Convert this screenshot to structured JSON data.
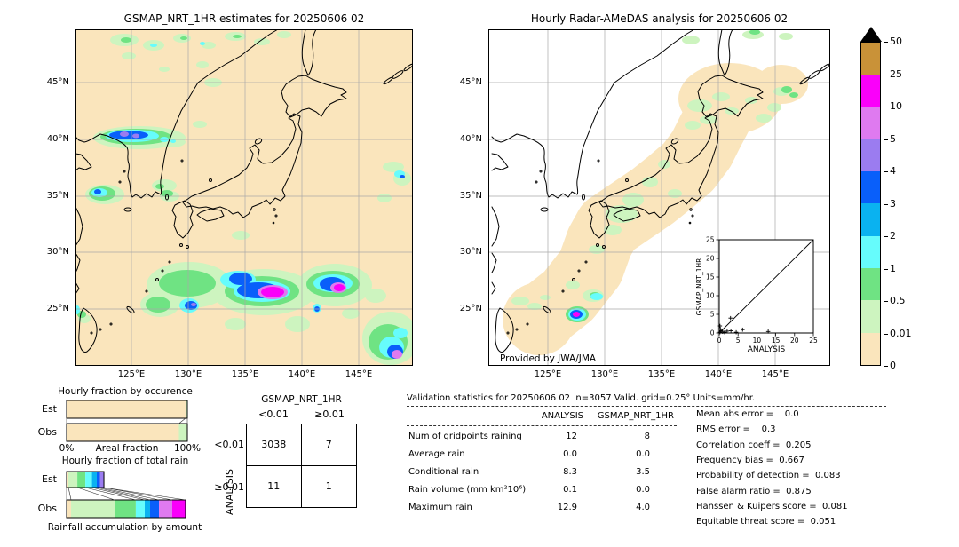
{
  "left_map": {
    "title": "GSMAP_NRT_1HR estimates for 20250606 02",
    "x_ticks": [
      "125°E",
      "130°E",
      "135°E",
      "140°E",
      "145°E"
    ],
    "y_ticks": [
      "45°N",
      "40°N",
      "35°N",
      "30°N",
      "25°N"
    ]
  },
  "right_map": {
    "title": "Hourly Radar-AMeDAS analysis for 20250606 02",
    "x_ticks": [
      "125°E",
      "130°E",
      "135°E",
      "140°E",
      "145°E"
    ],
    "y_ticks": [
      "45°N",
      "40°N",
      "35°N",
      "30°N",
      "25°N"
    ],
    "credit": "Provided by JWA/JMA",
    "inset": {
      "xlabel": "ANALYSIS",
      "ylabel": "GSMAP_NRT_1HR",
      "tick_labels": [
        "0",
        "5",
        "10",
        "15",
        "20",
        "25"
      ],
      "points": [
        [
          0.2,
          0.2
        ],
        [
          0.5,
          0.6
        ],
        [
          0.9,
          0.3
        ],
        [
          0.3,
          1.1
        ],
        [
          0.2,
          1.9
        ],
        [
          1.4,
          0.2
        ],
        [
          2.1,
          0.5
        ],
        [
          3.1,
          0.6
        ],
        [
          3.0,
          4.0
        ],
        [
          4.5,
          0.2
        ],
        [
          6.2,
          0.9
        ],
        [
          13.0,
          0.4
        ]
      ]
    }
  },
  "colorbar": {
    "labels": [
      "50",
      "25",
      "10",
      "5",
      "4",
      "3",
      "2",
      "1",
      "0.5",
      "0.01",
      "0"
    ],
    "colors": [
      "#c99238",
      "#fa00fa",
      "#df7af0",
      "#9b7cf0",
      "#095ffa",
      "#0ab2f0",
      "#66fcfc",
      "#6fe383",
      "#cdf4bf",
      "#fae5bc"
    ],
    "overflow_color": "#000000",
    "units": "mm/hr"
  },
  "occurrence_chart": {
    "title": "Hourly fraction by occurence",
    "row_labels": [
      "Est",
      "Obs"
    ],
    "xlabel": "Areal fraction",
    "x_min_label": "0%",
    "x_max_label": "100%",
    "est_segments": [
      {
        "color": "#fae5bc",
        "frac": 0.985
      },
      {
        "color": "#cdf4bf",
        "frac": 0.015
      }
    ],
    "obs_segments": [
      {
        "color": "#fae5bc",
        "frac": 0.93
      },
      {
        "color": "#cdf4bf",
        "frac": 0.07
      }
    ]
  },
  "totalrain_chart": {
    "title": "Hourly fraction of total rain",
    "row_labels": [
      "Est",
      "Obs"
    ],
    "caption": "Rainfall accumulation by amount",
    "est_segments": [
      {
        "color": "#fae5bc",
        "frac": 0.015
      },
      {
        "color": "#cdf4bf",
        "frac": 0.074
      },
      {
        "color": "#6fe383",
        "frac": 0.066
      },
      {
        "color": "#66fcfc",
        "frac": 0.055
      },
      {
        "color": "#0ab2f0",
        "frac": 0.04
      },
      {
        "color": "#095ffa",
        "frac": 0.026
      },
      {
        "color": "#9b7cf0",
        "frac": 0.033
      }
    ],
    "obs_segments": [
      {
        "color": "#fae5bc",
        "frac": 0.037
      },
      {
        "color": "#cdf4bf",
        "frac": 0.36
      },
      {
        "color": "#6fe383",
        "frac": 0.176
      },
      {
        "color": "#66fcfc",
        "frac": 0.074
      },
      {
        "color": "#0ab2f0",
        "frac": 0.044
      },
      {
        "color": "#095ffa",
        "frac": 0.074
      },
      {
        "color": "#df7af0",
        "frac": 0.11
      },
      {
        "color": "#fa00fa",
        "frac": 0.11
      }
    ]
  },
  "contingency": {
    "col_title": "GSMAP_NRT_1HR",
    "row_title": "ANALYSIS",
    "col_labels": [
      "<0.01",
      "≥0.01"
    ],
    "row_labels": [
      "<0.01",
      "≥0.01"
    ],
    "values": [
      [
        "3038",
        "7"
      ],
      [
        "11",
        "1"
      ]
    ]
  },
  "stats": {
    "title": "Validation statistics for 20250606 02  n=3057 Valid. grid=0.25° Units=mm/hr.",
    "columns": [
      "ANALYSIS",
      "GSMAP_NRT_1HR"
    ],
    "rows": [
      {
        "label": "Num of gridpoints raining",
        "analysis": "12",
        "gsmap": "8"
      },
      {
        "label": "Average rain",
        "analysis": "0.0",
        "gsmap": "0.0"
      },
      {
        "label": "Conditional rain",
        "analysis": "8.3",
        "gsmap": "3.5"
      },
      {
        "label": "Rain volume (mm km²10⁶)",
        "analysis": "0.1",
        "gsmap": "0.0"
      },
      {
        "label": "Maximum rain",
        "analysis": "12.9",
        "gsmap": "4.0"
      }
    ],
    "scores": [
      {
        "label": "Mean abs error",
        "value": "   0.0"
      },
      {
        "label": "RMS error",
        "value": "   0.3"
      },
      {
        "label": "Correlation coeff",
        "value": " 0.205"
      },
      {
        "label": "Frequency bias",
        "value": " 0.667"
      },
      {
        "label": "Probability of detection",
        "value": " 0.083"
      },
      {
        "label": "False alarm ratio",
        "value": " 0.875"
      },
      {
        "label": "Hanssen & Kuipers score",
        "value": " 0.081"
      },
      {
        "label": "Equitable threat score",
        "value": " 0.051"
      }
    ]
  },
  "chart_data": [
    {
      "type": "heatmap",
      "title": "GSMAP_NRT_1HR estimates for 20250606 02",
      "xlabel": "longitude",
      "ylabel": "latitude",
      "x_tick_labels": [
        "125°E",
        "130°E",
        "135°E",
        "140°E",
        "145°E"
      ],
      "y_tick_labels": [
        "45°N",
        "40°N",
        "35°N",
        "30°N",
        "25°N"
      ],
      "levels_mm_hr": [
        0,
        0.01,
        0.5,
        1,
        2,
        3,
        4,
        5,
        10,
        25,
        50
      ],
      "description": "Satellite precipitation estimate map over Japan/Korea; rain bands near 40N/125E, 35N/122E and a convective band near 26-28N between 128E-147E with cores exceeding 10 mm/hr."
    },
    {
      "type": "heatmap",
      "title": "Hourly Radar-AMeDAS analysis for 20250606 02",
      "xlabel": "longitude",
      "ylabel": "latitude",
      "x_tick_labels": [
        "125°E",
        "130°E",
        "135°E",
        "140°E",
        "145°E"
      ],
      "y_tick_labels": [
        "45°N",
        "40°N",
        "35°N",
        "30°N",
        "25°N"
      ],
      "levels_mm_hr": [
        0,
        0.01,
        0.5,
        1,
        2,
        3,
        4,
        5,
        10,
        25,
        50
      ],
      "annotation": "Provided by JWA/JMA",
      "description": "Radar coverage swath along the Japanese archipelago, mostly 0-0.5 mm/hr with light rain patches; one intense cell (>10 mm/hr) near 25.8N/131E."
    },
    {
      "type": "scatter",
      "xlabel": "ANALYSIS",
      "ylabel": "GSMAP_NRT_1HR",
      "xlim": [
        0,
        25
      ],
      "ylim": [
        0,
        25
      ],
      "identity_line": true,
      "points": [
        [
          0.2,
          0.2
        ],
        [
          0.5,
          0.6
        ],
        [
          0.9,
          0.3
        ],
        [
          0.3,
          1.1
        ],
        [
          0.2,
          1.9
        ],
        [
          1.4,
          0.2
        ],
        [
          2.1,
          0.5
        ],
        [
          3.1,
          0.6
        ],
        [
          3.0,
          4.0
        ],
        [
          4.5,
          0.2
        ],
        [
          6.2,
          0.9
        ],
        [
          13.0,
          0.4
        ]
      ]
    },
    {
      "type": "bar",
      "title": "Hourly fraction by occurence",
      "categories": [
        "Est",
        "Obs"
      ],
      "xlabel": "Areal fraction",
      "xlim_labels": [
        "0%",
        "100%"
      ],
      "series": [
        {
          "name": "Est",
          "raining_fraction": 0.015,
          "dry_fraction": 0.985
        },
        {
          "name": "Obs",
          "raining_fraction": 0.07,
          "dry_fraction": 0.93
        }
      ]
    },
    {
      "type": "bar",
      "title": "Hourly fraction of total rain",
      "categories": [
        "Est",
        "Obs"
      ],
      "xlabel": "Rainfall accumulation by amount",
      "series": [
        {
          "name": "Est",
          "stacked_fractions_by_intensity": [
            0.015,
            0.074,
            0.066,
            0.055,
            0.04,
            0.026,
            0.033
          ]
        },
        {
          "name": "Obs",
          "stacked_fractions_by_intensity": [
            0.037,
            0.36,
            0.176,
            0.074,
            0.044,
            0.074,
            0.11,
            0.11
          ]
        }
      ]
    },
    {
      "type": "table",
      "title": "Contingency table",
      "col_header": "GSMAP_NRT_1HR",
      "row_header": "ANALYSIS",
      "col_labels": [
        "<0.01",
        "≥0.01"
      ],
      "row_labels": [
        "<0.01",
        "≥0.01"
      ],
      "values": [
        [
          3038,
          7
        ],
        [
          11,
          1
        ]
      ]
    },
    {
      "type": "table",
      "title": "Validation statistics for 20250606 02  n=3057 Valid. grid=0.25° Units=mm/hr.",
      "columns": [
        "ANALYSIS",
        "GSMAP_NRT_1HR"
      ],
      "rows": [
        [
          "Num of gridpoints raining",
          12,
          8
        ],
        [
          "Average rain",
          0.0,
          0.0
        ],
        [
          "Conditional rain",
          8.3,
          3.5
        ],
        [
          "Rain volume (mm km²10⁶)",
          0.1,
          0.0
        ],
        [
          "Maximum rain",
          12.9,
          4.0
        ]
      ],
      "scores": {
        "Mean abs error": 0.0,
        "RMS error": 0.3,
        "Correlation coeff": 0.205,
        "Frequency bias": 0.667,
        "Probability of detection": 0.083,
        "False alarm ratio": 0.875,
        "Hanssen & Kuipers score": 0.081,
        "Equitable threat score": 0.051
      }
    }
  ]
}
